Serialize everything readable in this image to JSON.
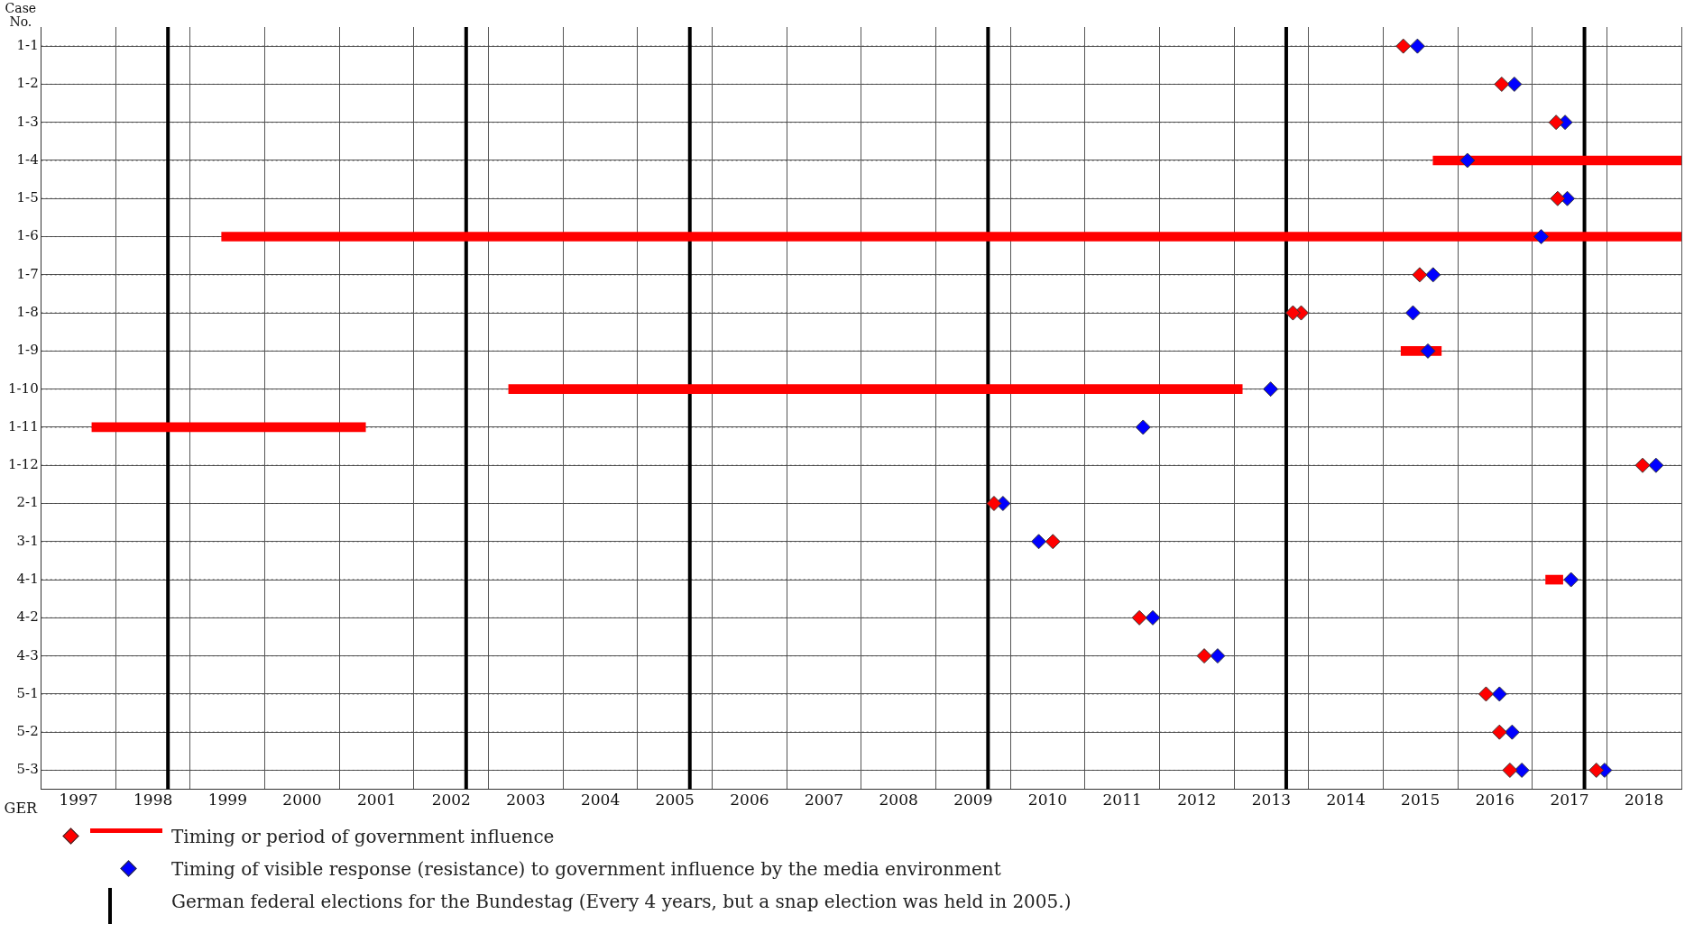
{
  "chart_data": {
    "type": "bar",
    "orientation": "horizontal",
    "xlabel": "GER",
    "ylabel": "Case No.",
    "categories": [
      "1-1",
      "1-2",
      "1-3",
      "1-4",
      "1-5",
      "1-6",
      "1-7",
      "1-8",
      "1-9",
      "1-10",
      "1-11",
      "1-12",
      "2-1",
      "3-1",
      "4-1",
      "4-2",
      "4-3",
      "5-1",
      "5-2",
      "5-3"
    ],
    "series": [
      {
        "color": "#ff0000",
        "base": [
          null,
          null,
          null,
          2015.67,
          null,
          1999.42,
          null,
          null,
          2015.24,
          2003.27,
          1997.68,
          null,
          null,
          null,
          2017.18,
          null,
          null,
          null,
          null,
          null
        ],
        "values": [
          null,
          null,
          null,
          3.33,
          null,
          19.58,
          null,
          null,
          0.54,
          9.84,
          3.67,
          null,
          null,
          null,
          0.23,
          null,
          null,
          null,
          null,
          null
        ]
      },
      {
        "type": "scatter",
        "name": "Timing or period of government influence",
        "color": "#ff0000",
        "values": [
          2015.27,
          2016.59,
          2017.32,
          null,
          2017.34,
          null,
          2015.49,
          2013.79,
          null,
          null,
          null,
          2018.48,
          2009.78,
          2010.57,
          null,
          2011.73,
          2012.6,
          2016.38,
          2016.56,
          2016.7
        ]
      },
      {
        "type": "scatter",
        "color": "#ff0000",
        "values": [
          null,
          null,
          null,
          null,
          null,
          null,
          null,
          2013.9,
          null,
          null,
          null,
          null,
          null,
          null,
          null,
          null,
          null,
          null,
          null,
          2017.86
        ]
      },
      {
        "type": "scatter",
        "name": "Timing of visible response (resistance) to government influence by the media environment",
        "color": "#0000ff",
        "values": [
          2015.46,
          2016.76,
          2017.44,
          2016.13,
          2017.47,
          2017.12,
          2015.67,
          2015.4,
          2015.6,
          2013.49,
          2011.78,
          2018.66,
          2009.9,
          2010.38,
          2017.52,
          2011.91,
          2012.78,
          2016.56,
          2016.73,
          2016.86
        ]
      },
      {
        "type": "scatter",
        "color": "#0000ff",
        "values": [
          null,
          null,
          null,
          null,
          null,
          null,
          null,
          null,
          null,
          null,
          null,
          null,
          null,
          null,
          null,
          null,
          null,
          null,
          null,
          2017.97
        ]
      }
    ],
    "xlim": [
      1997,
      2019
    ],
    "xticks": [
      {
        "value": 1997,
        "label": null
      },
      {
        "value": 1997.5,
        "label": "1997"
      },
      {
        "value": 1998,
        "label": null
      },
      {
        "value": 1998.5,
        "label": "1998"
      },
      {
        "value": 1999,
        "label": null
      },
      {
        "value": 1999.5,
        "label": "1999"
      },
      {
        "value": 2000,
        "label": null
      },
      {
        "value": 2000.5,
        "label": "2000"
      },
      {
        "value": 2001,
        "label": null
      },
      {
        "value": 2001.5,
        "label": "2001"
      },
      {
        "value": 2002,
        "label": null
      },
      {
        "value": 2002.5,
        "label": "2002"
      },
      {
        "value": 2003,
        "label": null
      },
      {
        "value": 2003.5,
        "label": "2003"
      },
      {
        "value": 2004,
        "label": null
      },
      {
        "value": 2004.5,
        "label": "2004"
      },
      {
        "value": 2005,
        "label": null
      },
      {
        "value": 2005.5,
        "label": "2005"
      },
      {
        "value": 2006,
        "label": null
      },
      {
        "value": 2006.5,
        "label": "2006"
      },
      {
        "value": 2007,
        "label": null
      },
      {
        "value": 2007.5,
        "label": "2007"
      },
      {
        "value": 2008,
        "label": null
      },
      {
        "value": 2008.5,
        "label": "2008"
      },
      {
        "value": 2009,
        "label": null
      },
      {
        "value": 2009.5,
        "label": "2009"
      },
      {
        "value": 2010,
        "label": null
      },
      {
        "value": 2010.5,
        "label": "2010"
      },
      {
        "value": 2011,
        "label": null
      },
      {
        "value": 2011.5,
        "label": "2011"
      },
      {
        "value": 2012,
        "label": null
      },
      {
        "value": 2012.5,
        "label": "2012"
      },
      {
        "value": 2013,
        "label": null
      },
      {
        "value": 2013.5,
        "label": "2013"
      },
      {
        "value": 2014,
        "label": null
      },
      {
        "value": 2014.5,
        "label": "2014"
      },
      {
        "value": 2015,
        "label": null
      },
      {
        "value": 2015.5,
        "label": "2015"
      },
      {
        "value": 2016,
        "label": null
      },
      {
        "value": 2016.5,
        "label": "2016"
      },
      {
        "value": 2017,
        "label": null
      },
      {
        "value": 2017.5,
        "label": "2017"
      },
      {
        "value": 2018,
        "label": null
      },
      {
        "value": 2018.5,
        "label": "2018"
      },
      {
        "value": 2019,
        "label": null
      }
    ],
    "ref_lines": [
      {
        "axis": "x",
        "value": 1998.7,
        "color": "#000000"
      },
      {
        "axis": "x",
        "value": 2002.7,
        "color": "#000000"
      },
      {
        "axis": "x",
        "value": 2005.7,
        "color": "#000000"
      },
      {
        "axis": "x",
        "value": 2009.7,
        "color": "#000000"
      },
      {
        "axis": "x",
        "value": 2013.7,
        "color": "#000000"
      },
      {
        "axis": "x",
        "value": 2017.7,
        "color": "#000000"
      }
    ],
    "annotations": [
      "German federal elections for the Bundestag (Every 4 years, but a snap election was held in 2005.)"
    ],
    "grid": true,
    "marker": "diamond",
    "legend": "bottom"
  }
}
